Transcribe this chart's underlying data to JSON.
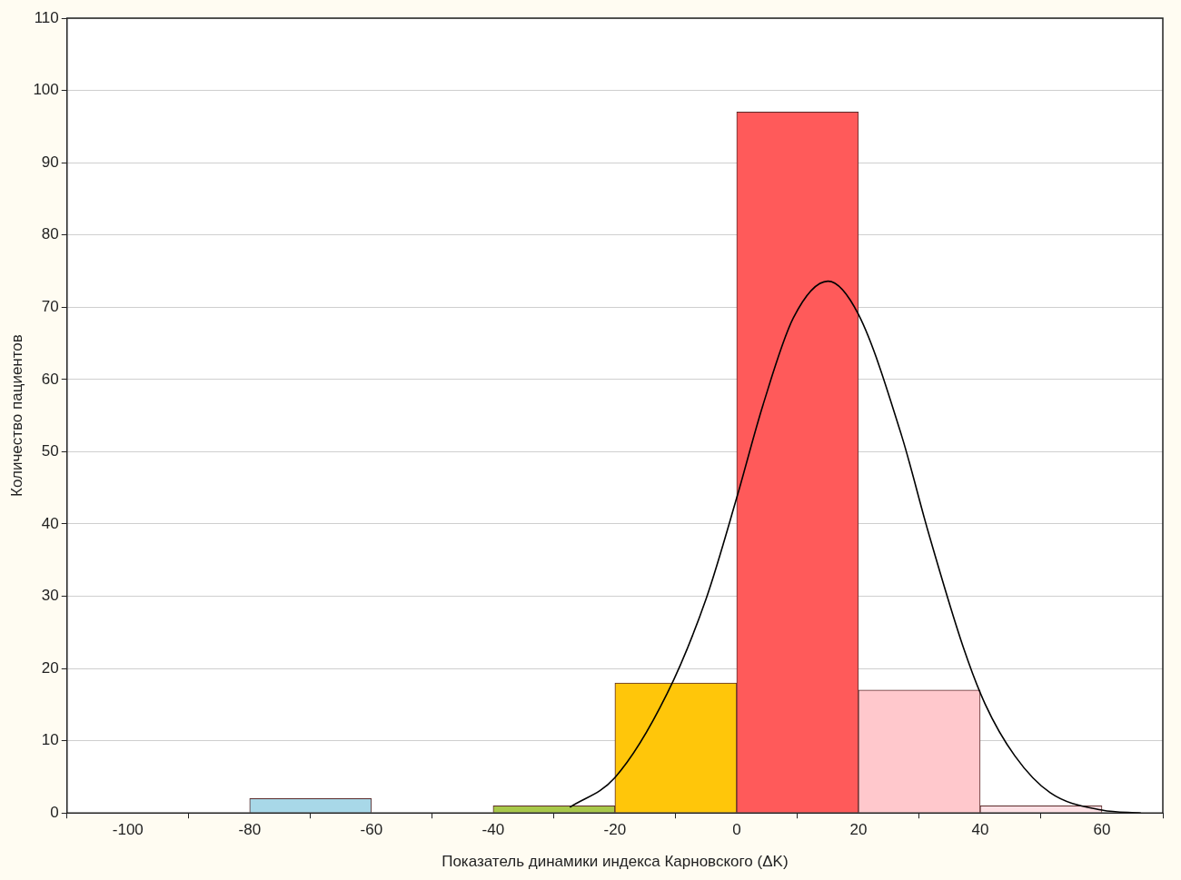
{
  "chart_data": {
    "type": "histogram",
    "xlabel": "Показатель динамики индекса Карновского (ΔK)",
    "ylabel": "Количество пациентов",
    "bins": [
      -80,
      -60,
      -40,
      -20,
      0,
      20,
      40,
      60
    ],
    "values": [
      2,
      0,
      1,
      18,
      97,
      17,
      1
    ],
    "colors": [
      "#a8d8e8",
      "#ffffff",
      "#a8c84a",
      "#ffc60a",
      "#ff5a5a",
      "#ffc8cc",
      "#fde0e4"
    ],
    "series": [
      {
        "type": "line",
        "color": "#000000",
        "x": [
          -27.4,
          -20,
          -11.5,
          -5,
          0,
          4.3,
          9.3,
          15,
          20,
          27.1,
          31.5,
          37.2,
          40.8,
          45.7,
          51.5,
          60,
          66.4
        ],
        "values": [
          0.8,
          4.9,
          16.4,
          29.7,
          43.6,
          56.4,
          68.5,
          73.6,
          69,
          52.2,
          38.8,
          23,
          15.1,
          7.9,
          2.8,
          0.4,
          0
        ]
      }
    ],
    "xlim": [
      -110,
      70
    ],
    "xticks": [
      -100,
      -80,
      -60,
      -40,
      -20,
      0,
      20,
      40,
      60
    ],
    "ylim": [
      0,
      110
    ],
    "yticks": [
      0,
      10,
      20,
      30,
      40,
      50,
      60,
      70,
      80,
      90,
      100,
      110
    ],
    "grid": "y",
    "legend": false,
    "marker": "none"
  }
}
